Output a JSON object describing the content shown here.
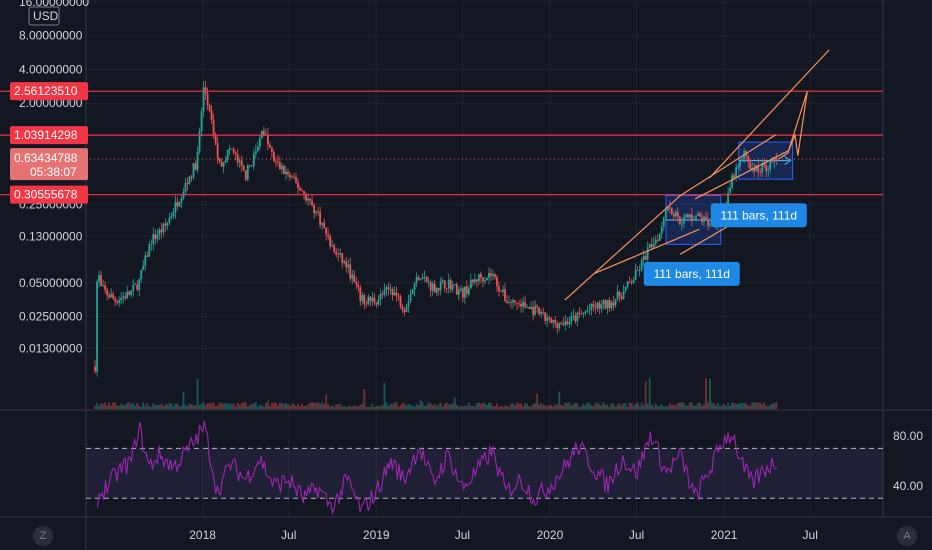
{
  "colors": {
    "background": "#131722",
    "grid": "#1e222d",
    "text": "#d1d4dc",
    "up_candle": "#26a69a",
    "down_candle": "#ef5350",
    "hline": "#f23645",
    "trendline": "#f7925a",
    "pattern_box": "#2962ff",
    "rsi_line": "#9c27b0",
    "rsi_band": "#7e57c2",
    "label_bg": "#1e88e5",
    "price_current_bg": "#e57373"
  },
  "corner_buttons": {
    "left": "Z",
    "right": "A"
  },
  "chart_data": {
    "type": "candlestick",
    "currency": "USD",
    "y_scale": "log",
    "ylim": [
      0.0045,
      16.0
    ],
    "y_ticks": [
      "16.00000000",
      "8.00000000",
      "4.00000000",
      "2.00000000",
      "0.25000000",
      "0.13000000",
      "0.05000000",
      "0.02500000",
      "0.01300000"
    ],
    "x_ticks": [
      "2018",
      "Jul",
      "2019",
      "Jul",
      "2020",
      "Jul",
      "2021",
      "Jul"
    ],
    "x_range": [
      "2017-05",
      "2021-12"
    ],
    "price_path": [
      [
        "2017-05-20",
        0.009
      ],
      [
        "2017-05-25",
        0.07
      ],
      [
        "2017-06-01",
        0.045
      ],
      [
        "2017-07-01",
        0.035
      ],
      [
        "2017-08-01",
        0.04
      ],
      [
        "2017-08-20",
        0.05
      ],
      [
        "2017-09-15",
        0.12
      ],
      [
        "2017-10-15",
        0.16
      ],
      [
        "2017-11-15",
        0.3
      ],
      [
        "2017-12-20",
        0.6
      ],
      [
        "2018-01-04",
        2.9
      ],
      [
        "2018-01-20",
        1.3
      ],
      [
        "2018-02-06",
        0.55
      ],
      [
        "2018-03-01",
        0.8
      ],
      [
        "2018-04-01",
        0.45
      ],
      [
        "2018-04-30",
        0.85
      ],
      [
        "2018-05-05",
        1.25
      ],
      [
        "2018-06-01",
        0.6
      ],
      [
        "2018-07-01",
        0.45
      ],
      [
        "2018-08-01",
        0.32
      ],
      [
        "2018-09-01",
        0.2
      ],
      [
        "2018-10-01",
        0.1
      ],
      [
        "2018-11-01",
        0.07
      ],
      [
        "2018-12-01",
        0.035
      ],
      [
        "2019-01-01",
        0.035
      ],
      [
        "2019-02-01",
        0.045
      ],
      [
        "2019-03-01",
        0.03
      ],
      [
        "2019-04-01",
        0.06
      ],
      [
        "2019-05-01",
        0.045
      ],
      [
        "2019-06-01",
        0.05
      ],
      [
        "2019-07-01",
        0.04
      ],
      [
        "2019-08-01",
        0.055
      ],
      [
        "2019-09-01",
        0.06
      ],
      [
        "2019-10-01",
        0.035
      ],
      [
        "2019-11-01",
        0.032
      ],
      [
        "2019-12-01",
        0.028
      ],
      [
        "2020-01-01",
        0.022
      ],
      [
        "2020-02-01",
        0.022
      ],
      [
        "2020-03-01",
        0.025
      ],
      [
        "2020-04-01",
        0.03
      ],
      [
        "2020-05-01",
        0.032
      ],
      [
        "2020-06-01",
        0.04
      ],
      [
        "2020-07-01",
        0.06
      ],
      [
        "2020-08-01",
        0.11
      ],
      [
        "2020-08-20",
        0.14
      ],
      [
        "2020-09-01",
        0.25
      ],
      [
        "2020-10-01",
        0.18
      ],
      [
        "2020-11-01",
        0.2
      ],
      [
        "2020-12-01",
        0.17
      ],
      [
        "2021-01-01",
        0.2
      ],
      [
        "2021-01-20",
        0.45
      ],
      [
        "2021-02-01",
        0.55
      ],
      [
        "2021-02-15",
        0.72
      ],
      [
        "2021-03-01",
        0.5
      ],
      [
        "2021-04-01",
        0.55
      ],
      [
        "2021-04-25",
        0.6343
      ]
    ],
    "price_lines": [
      {
        "label": "2.56123510",
        "value": 2.5612351
      },
      {
        "label": "1.03914298",
        "value": 1.03914298
      },
      {
        "label": "0.30555678",
        "value": 0.30555678
      }
    ],
    "current_price": {
      "label": "0.63434788",
      "countdown": "05:38:07",
      "value": 0.63434788
    },
    "trendlines": [
      {
        "from": [
          "2020-02-01",
          0.035
        ],
        "to": [
          "2020-10-01",
          0.3
        ]
      },
      {
        "from": [
          "2020-04-01",
          0.06
        ],
        "to": [
          "2020-11-10",
          0.15
        ]
      },
      {
        "from": [
          "2020-10-01",
          0.09
        ],
        "to": [
          "2021-01-10",
          0.16
        ]
      },
      {
        "from": [
          "2020-11-01",
          0.28
        ],
        "to": [
          "2021-05-15",
          0.75
        ]
      },
      {
        "from": [
          "2020-10-01",
          0.3
        ],
        "to": [
          "2021-04-20",
          1.05
        ]
      },
      {
        "from": [
          "2020-12-01",
          0.43
        ],
        "to": [
          "2021-08-10",
          6.0
        ]
      },
      {
        "from": [
          "2021-05-15",
          0.72
        ],
        "to": [
          "2021-06-25",
          2.56
        ]
      }
    ],
    "projection_path": [
      [
        "2021-04-25",
        0.634
      ],
      [
        "2021-05-15",
        0.72
      ],
      [
        "2021-05-30",
        1.05
      ],
      [
        "2021-06-05",
        0.68
      ],
      [
        "2021-06-25",
        2.56
      ]
    ],
    "range_boxes": [
      {
        "x0": "2020-09-01",
        "x1": "2020-12-25",
        "y0": 0.11,
        "y1": 0.3
      },
      {
        "x0": "2021-02-01",
        "x1": "2021-05-25",
        "y0": 0.42,
        "y1": 0.9
      }
    ],
    "annotations": [
      {
        "text": "111 bars, 111d",
        "x": "2020-10-25",
        "y": 0.06
      },
      {
        "text": "111 bars, 111d",
        "x": "2021-03-15",
        "y": 0.2
      }
    ],
    "rsi": {
      "ylim": [
        15,
        100
      ],
      "ticks": [
        "80.00",
        "40.00"
      ],
      "overbought": 70,
      "oversold": 30,
      "path": [
        [
          "2017-05-25",
          30
        ],
        [
          "2017-06-15",
          40
        ],
        [
          "2017-07-10",
          52
        ],
        [
          "2017-08-05",
          60
        ],
        [
          "2017-08-20",
          88
        ],
        [
          "2017-09-10",
          55
        ],
        [
          "2017-10-01",
          65
        ],
        [
          "2017-11-01",
          55
        ],
        [
          "2017-12-15",
          75
        ],
        [
          "2018-01-05",
          88
        ],
        [
          "2018-02-01",
          35
        ],
        [
          "2018-03-01",
          58
        ],
        [
          "2018-04-01",
          45
        ],
        [
          "2018-05-01",
          62
        ],
        [
          "2018-06-01",
          40
        ],
        [
          "2018-07-01",
          45
        ],
        [
          "2018-08-01",
          30
        ],
        [
          "2018-09-01",
          38
        ],
        [
          "2018-10-01",
          22
        ],
        [
          "2018-11-01",
          45
        ],
        [
          "2018-12-01",
          20
        ],
        [
          "2019-01-01",
          35
        ],
        [
          "2019-02-01",
          60
        ],
        [
          "2019-03-01",
          45
        ],
        [
          "2019-04-01",
          72
        ],
        [
          "2019-05-01",
          42
        ],
        [
          "2019-06-01",
          65
        ],
        [
          "2019-07-01",
          38
        ],
        [
          "2019-08-01",
          52
        ],
        [
          "2019-09-01",
          68
        ],
        [
          "2019-10-01",
          35
        ],
        [
          "2019-11-01",
          45
        ],
        [
          "2019-12-01",
          30
        ],
        [
          "2020-01-01",
          40
        ],
        [
          "2020-02-01",
          55
        ],
        [
          "2020-03-01",
          72
        ],
        [
          "2020-04-01",
          55
        ],
        [
          "2020-05-01",
          40
        ],
        [
          "2020-06-01",
          62
        ],
        [
          "2020-07-01",
          50
        ],
        [
          "2020-08-01",
          82
        ],
        [
          "2020-09-01",
          50
        ],
        [
          "2020-10-01",
          65
        ],
        [
          "2020-11-01",
          30
        ],
        [
          "2020-12-01",
          52
        ],
        [
          "2021-01-01",
          78
        ],
        [
          "2021-01-20",
          82
        ],
        [
          "2021-02-05",
          58
        ],
        [
          "2021-03-01",
          42
        ],
        [
          "2021-04-01",
          55
        ],
        [
          "2021-04-25",
          60
        ]
      ]
    }
  }
}
